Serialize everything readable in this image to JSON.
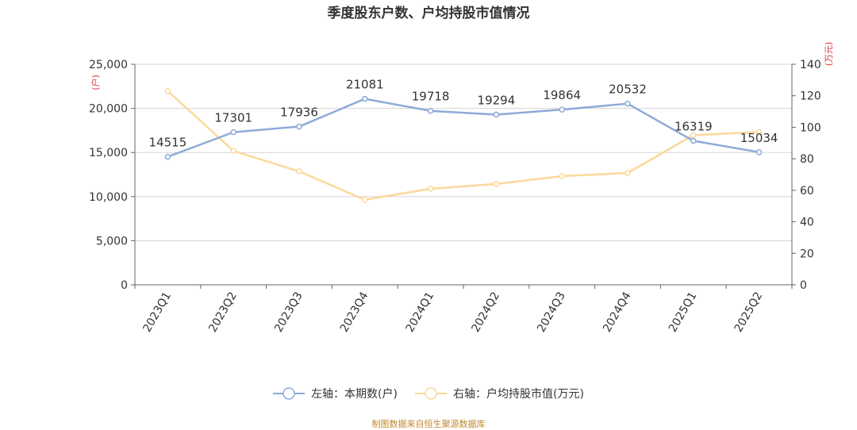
{
  "chart_data": {
    "type": "line",
    "title": "季度股东户数、户均持股市值情况",
    "categories": [
      "2023Q1",
      "2023Q2",
      "2023Q3",
      "2023Q4",
      "2024Q1",
      "2024Q2",
      "2024Q3",
      "2024Q4",
      "2025Q1",
      "2025Q2"
    ],
    "series": [
      {
        "name": "左轴：本期数(户)",
        "axis": "left",
        "color": "#8eaad8",
        "values": [
          14515,
          17301,
          17936,
          21081,
          19718,
          19294,
          19864,
          20532,
          16319,
          15034
        ],
        "labels": [
          "14515",
          "17301",
          "17936",
          "21081",
          "19718",
          "19294",
          "19864",
          "20532",
          "16319",
          "15034"
        ]
      },
      {
        "name": "右轴：户均持股市值(万元)",
        "axis": "right",
        "color": "#fbd99a",
        "values": [
          123,
          85,
          72,
          54,
          61,
          64,
          69,
          71,
          95,
          97
        ]
      }
    ],
    "y_left": {
      "unit": "(户)",
      "min": 0,
      "max": 25000,
      "ticks": [
        "0",
        "5,000",
        "10,000",
        "15,000",
        "20,000",
        "25,000"
      ],
      "tick_values": [
        0,
        5000,
        10000,
        15000,
        20000,
        25000
      ]
    },
    "y_right": {
      "unit": "(万元)",
      "min": 0,
      "max": 140,
      "ticks": [
        "0",
        "20",
        "40",
        "60",
        "80",
        "100",
        "120",
        "140"
      ],
      "tick_values": [
        0,
        20,
        40,
        60,
        80,
        100,
        120,
        140
      ]
    },
    "grid": true,
    "legend_position": "bottom"
  },
  "legend": {
    "left": "左轴：本期数(户)",
    "right": "右轴：户均持股市值(万元)"
  },
  "source": "制图数据来自恒生聚源数据库"
}
